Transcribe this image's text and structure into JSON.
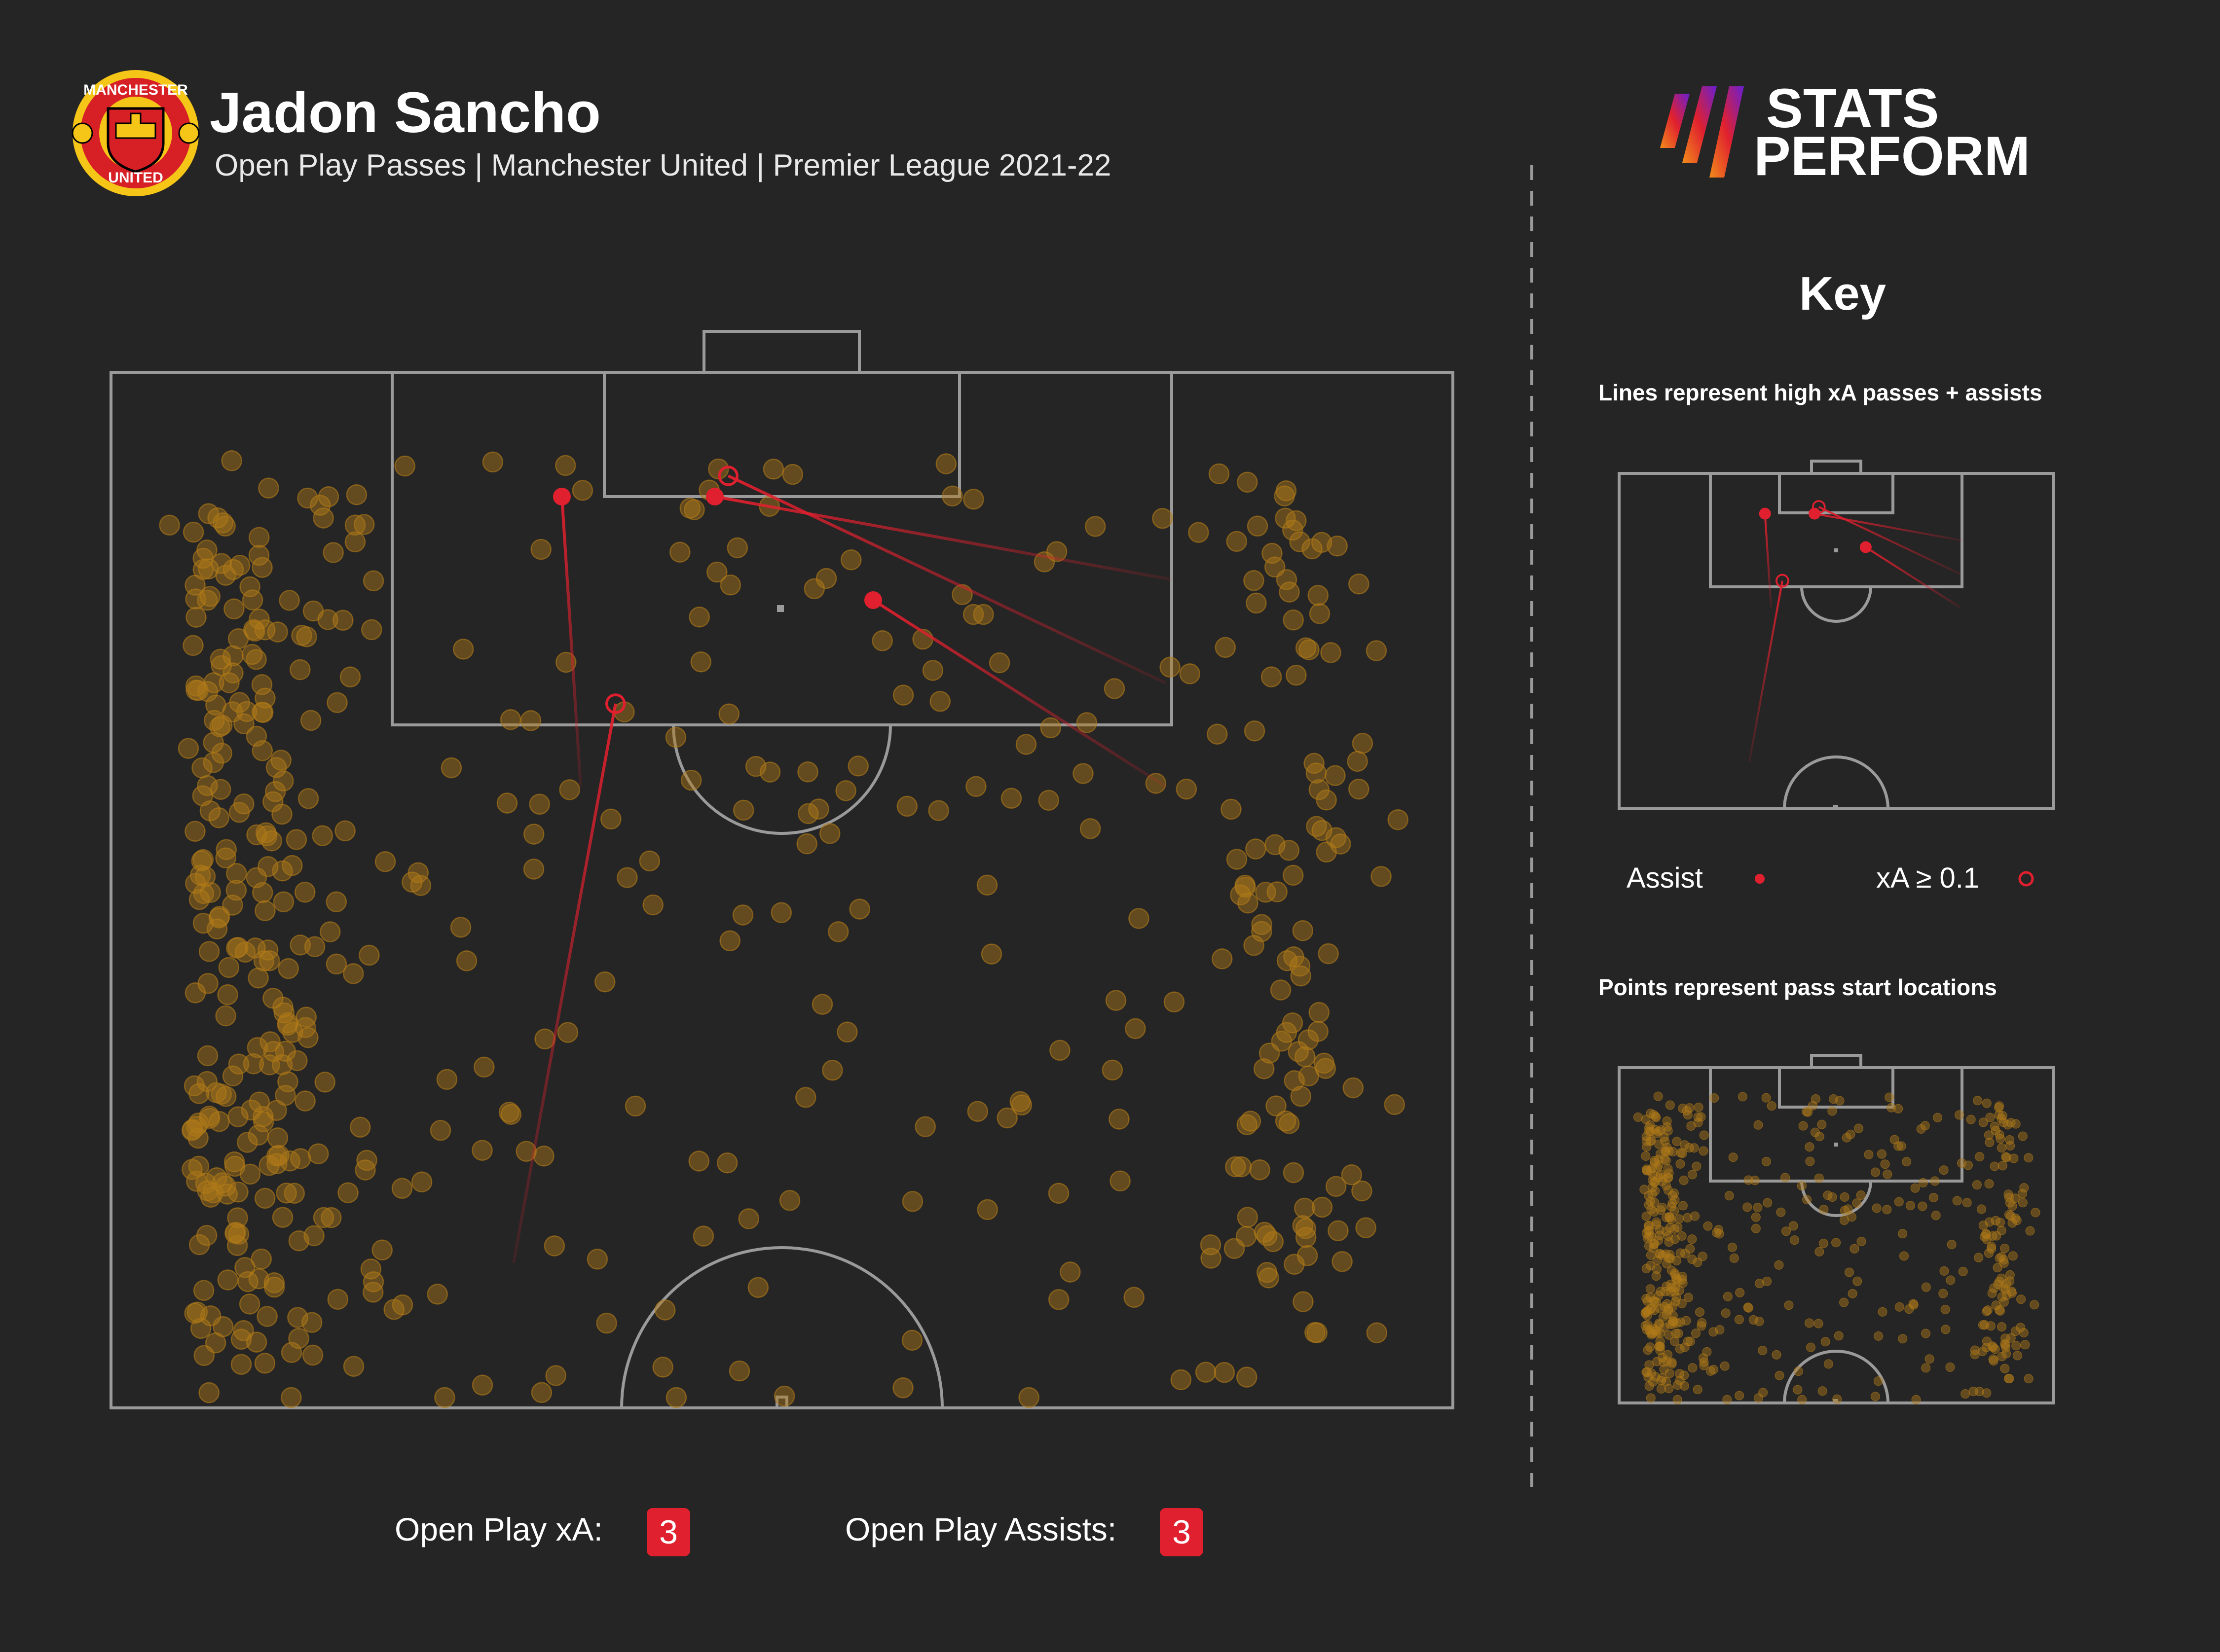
{
  "header": {
    "title": "Jadon Sancho",
    "subtitle": "Open Play Passes | Manchester United | Premier League 2021-22",
    "crest": {
      "text_top": "MANCHESTER",
      "text_bottom": "UNITED"
    }
  },
  "brand": {
    "line1": "STATS",
    "line2": "PERFORM"
  },
  "key": {
    "title": "Key",
    "lines_caption": "Lines represent high xA passes + assists",
    "assist_label": "Assist",
    "xa_label": "xA ≥ 0.1",
    "points_caption": "Points represent pass start locations"
  },
  "footer": {
    "xa_label": "Open Play xA:",
    "xa_value": "3",
    "assists_label": "Open Play Assists:",
    "assists_value": "3"
  },
  "colors": {
    "background": "#252525",
    "pitch_line": "#9a9a9a",
    "point": "#b07a18",
    "assist": "#e0202e",
    "crest_red": "#d71f26",
    "crest_yellow": "#f5c518",
    "brand_gradient": [
      "#6a1fd1",
      "#e0202e",
      "#f28c1b"
    ]
  },
  "chart_data": {
    "type": "scatter",
    "description_units": "pitch length 0-100 (own goal to opponent goal), width 0-100 (left to right, attacking upward)",
    "highlighted_passes": [
      {
        "type": "assist",
        "start": [
          80,
          35
        ],
        "end": [
          94,
          33.6
        ]
      },
      {
        "type": "assist",
        "start": [
          80,
          78.6
        ],
        "end": [
          89,
          56.8
        ]
      },
      {
        "type": "assist",
        "start": [
          90,
          79
        ],
        "end": [
          94,
          45
        ]
      },
      {
        "type": "xa",
        "start": [
          57,
          30
        ],
        "end": [
          84,
          37.6
        ]
      },
      {
        "type": "xa",
        "start": [
          85,
          78.6
        ],
        "end": [
          95,
          46
        ]
      }
    ]
  }
}
